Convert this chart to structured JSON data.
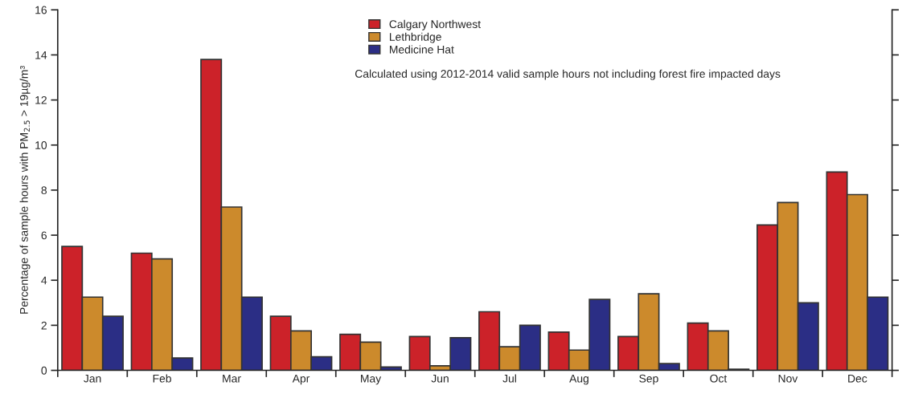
{
  "chart_data": {
    "type": "bar",
    "ylabel": "Percentage of sample hours with PM$_{2.5}$ > 19µg/m³",
    "categories": [
      "Jan",
      "Feb",
      "Mar",
      "Apr",
      "May",
      "Jun",
      "Jul",
      "Aug",
      "Sep",
      "Oct",
      "Nov",
      "Dec"
    ],
    "series": [
      {
        "name": "Calgary Northwest",
        "color": "#cc2229",
        "values": [
          5.5,
          5.2,
          13.8,
          2.4,
          1.6,
          1.5,
          2.6,
          1.7,
          1.5,
          2.1,
          6.45,
          8.8
        ]
      },
      {
        "name": "Lethbridge",
        "color": "#cc8a2c",
        "values": [
          3.25,
          4.95,
          7.25,
          1.75,
          1.25,
          0.2,
          1.05,
          0.9,
          3.4,
          1.75,
          7.45,
          7.8
        ]
      },
      {
        "name": "Medicine Hat",
        "color": "#2b2e85",
        "values": [
          2.4,
          0.55,
          3.25,
          0.6,
          0.15,
          1.45,
          2.0,
          3.15,
          0.3,
          0.05,
          3.0,
          3.25
        ]
      }
    ],
    "ylim": [
      0,
      16
    ],
    "yticks": [
      0,
      2,
      4,
      6,
      8,
      10,
      12,
      14,
      16
    ],
    "legend": "top",
    "annotations": [
      "Calculated using 2012-2014 valid sample hours not including forest fire impacted days"
    ]
  }
}
